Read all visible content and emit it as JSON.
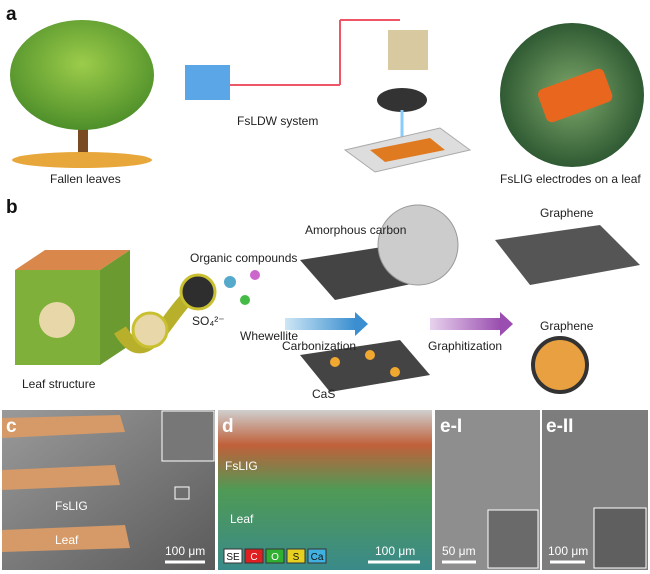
{
  "panel_a": {
    "label": "a",
    "tree_caption": "Fallen leaves",
    "system_label": "FsLDW system",
    "photo_caption": "FsLIG electrodes on a leaf"
  },
  "panel_b": {
    "label": "b",
    "amorphous": "Amorphous carbon",
    "graphene_sheet": "Graphene",
    "organic": "Organic compounds",
    "sulfate": "SO₄²⁻",
    "whewellite": "Whewellite",
    "carbonization": "Carbonization",
    "graphitization": "Graphitization",
    "graphene_sphere": "Graphene",
    "leaf_structure": "Leaf structure",
    "cas": "CaS"
  },
  "panel_c": {
    "label": "c",
    "fslig": "FsLIG",
    "leaf": "Leaf",
    "scale": "100 μm"
  },
  "panel_d": {
    "label": "d",
    "fslig": "FsLIG",
    "leaf": "Leaf",
    "scale": "100 μm",
    "legend": [
      "SE",
      "C",
      "O",
      "S",
      "Ca"
    ]
  },
  "panel_e1": {
    "label": "e-I",
    "scale": "50 μm"
  },
  "panel_e2": {
    "label": "e-II",
    "scale": "100 μm"
  }
}
